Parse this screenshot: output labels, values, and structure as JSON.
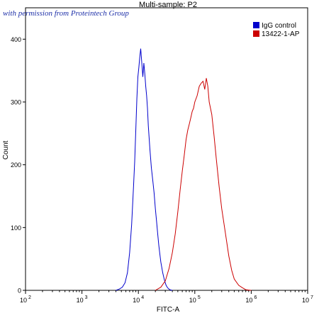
{
  "watermark": "with permission from Proteintech Group",
  "chart_data": {
    "type": "line",
    "title": "Multi-sample: P2",
    "xlabel": "FITC-A",
    "ylabel": "Count",
    "x_scale": "log",
    "xlim": [
      100,
      10000000
    ],
    "ylim": [
      0,
      450
    ],
    "x_tick_labels": [
      {
        "value": 100,
        "base": "10",
        "exp": "2"
      },
      {
        "value": 1000,
        "base": "10",
        "exp": "3"
      },
      {
        "value": 10000,
        "base": "10",
        "exp": "4"
      },
      {
        "value": 100000,
        "base": "10",
        "exp": "5"
      },
      {
        "value": 1000000,
        "base": "10",
        "exp": "6"
      },
      {
        "value": 10000000,
        "base": "10",
        "exp": "7"
      }
    ],
    "y_ticks": [
      0,
      100,
      200,
      300,
      400
    ],
    "grid": false,
    "legend_position": "top-right",
    "series": [
      {
        "name": "IgG control",
        "color": "#0000cc",
        "x": [
          4000,
          4600,
          5200,
          5800,
          6400,
          7000,
          7600,
          8200,
          8600,
          9000,
          9400,
          9800,
          10200,
          10600,
          11000,
          11500,
          12000,
          12500,
          13000,
          13500,
          14000,
          14500,
          15000,
          16000,
          17000,
          18000,
          19000,
          20000,
          21000,
          22000,
          23000,
          24000,
          25000,
          27000,
          29000,
          31000,
          33000,
          36000,
          40000
        ],
        "y": [
          0,
          2,
          5,
          12,
          28,
          60,
          105,
          165,
          205,
          255,
          305,
          340,
          355,
          372,
          385,
          362,
          340,
          362,
          345,
          325,
          310,
          290,
          262,
          225,
          195,
          175,
          155,
          130,
          110,
          90,
          72,
          58,
          45,
          28,
          16,
          8,
          4,
          1,
          0
        ]
      },
      {
        "name": "13422-1-AP",
        "color": "#cc0000",
        "x": [
          20000,
          25000,
          30000,
          35000,
          40000,
          45000,
          50000,
          55000,
          60000,
          65000,
          70000,
          75000,
          80000,
          85000,
          90000,
          95000,
          100000,
          110000,
          120000,
          130000,
          140000,
          150000,
          160000,
          170000,
          180000,
          200000,
          220000,
          240000,
          270000,
          300000,
          350000,
          400000,
          450000,
          500000,
          600000,
          700000,
          800000,
          1000000
        ],
        "y": [
          0,
          5,
          15,
          35,
          60,
          90,
          125,
          160,
          190,
          215,
          240,
          255,
          265,
          275,
          285,
          290,
          300,
          310,
          325,
          330,
          333,
          320,
          338,
          325,
          300,
          280,
          245,
          210,
          165,
          130,
          90,
          55,
          32,
          18,
          8,
          4,
          1,
          0
        ]
      }
    ]
  }
}
